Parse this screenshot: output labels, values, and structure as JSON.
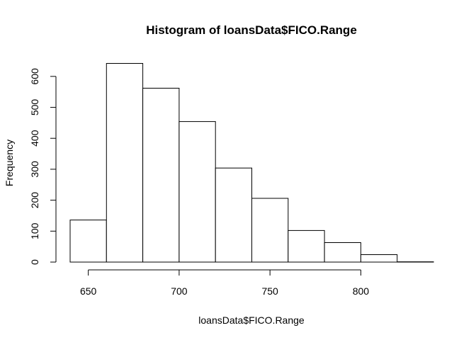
{
  "chart_data": {
    "type": "bar",
    "title": "Histogram of loansData$FICO.Range",
    "xlabel": "loansData$FICO.Range",
    "ylabel": "Frequency",
    "bins": [
      {
        "start": 640,
        "end": 660,
        "count": 136
      },
      {
        "start": 660,
        "end": 680,
        "count": 642
      },
      {
        "start": 680,
        "end": 700,
        "count": 562
      },
      {
        "start": 700,
        "end": 720,
        "count": 454
      },
      {
        "start": 720,
        "end": 740,
        "count": 304
      },
      {
        "start": 740,
        "end": 760,
        "count": 206
      },
      {
        "start": 760,
        "end": 780,
        "count": 102
      },
      {
        "start": 780,
        "end": 800,
        "count": 63
      },
      {
        "start": 800,
        "end": 820,
        "count": 24
      },
      {
        "start": 820,
        "end": 840,
        "count": 1
      }
    ],
    "x_ticks": [
      650,
      700,
      750,
      800
    ],
    "y_ticks": [
      0,
      100,
      200,
      300,
      400,
      500,
      600
    ],
    "xlim": [
      640,
      840
    ],
    "ylim": [
      0,
      642
    ],
    "grid": false,
    "legend": "none"
  }
}
